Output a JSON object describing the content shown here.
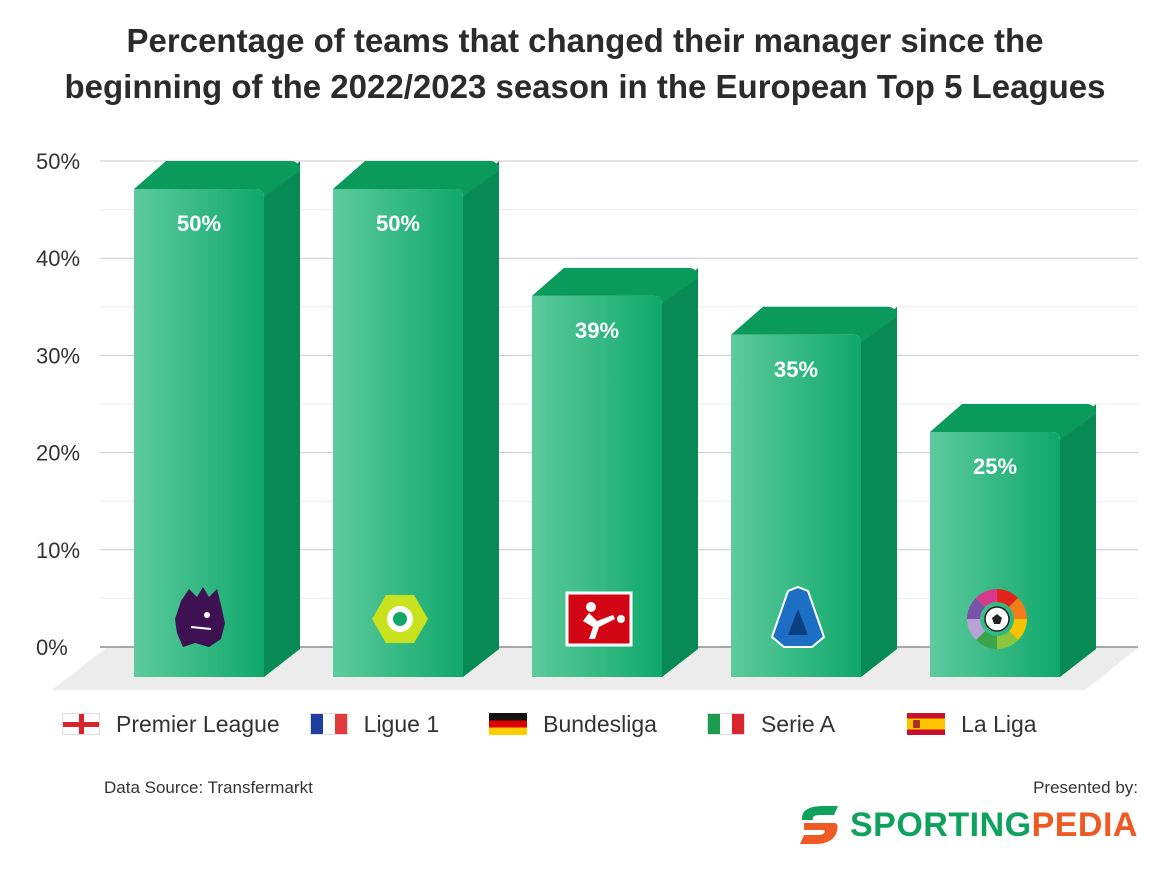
{
  "chart_data": {
    "type": "bar",
    "title_lines": [
      "Percentage of teams that changed their manager since the",
      "beginning of the 2022/2023 season in the European Top 5 Leagues"
    ],
    "categories": [
      "Premier League",
      "Ligue 1",
      "Bundesliga",
      "Serie A",
      "La Liga"
    ],
    "values": [
      50,
      50,
      39,
      35,
      25
    ],
    "value_labels": [
      "50%",
      "50%",
      "39%",
      "35%",
      "25%"
    ],
    "logos": [
      "premier-league-lion-logo",
      "ligue-1-logo",
      "bundesliga-logo",
      "serie-a-logo",
      "la-liga-logo"
    ],
    "ylim": [
      0,
      50
    ],
    "yticks": [
      0,
      10,
      20,
      30,
      40,
      50
    ],
    "ytick_labels": [
      "0%",
      "10%",
      "20%",
      "30%",
      "40%",
      "50%"
    ],
    "grid": true,
    "legend_position": "bottom",
    "bar_colors": {
      "front_light": "#5dcb9e",
      "front_dark": "#0fa86a",
      "top": "#0a9a5b",
      "side": "#078a53"
    }
  },
  "legend": [
    {
      "label": "Premier League",
      "flag": "england-flag-icon"
    },
    {
      "label": "Ligue 1",
      "flag": "france-flag-icon"
    },
    {
      "label": "Bundesliga",
      "flag": "germany-flag-icon"
    },
    {
      "label": "Serie A",
      "flag": "italy-flag-icon"
    },
    {
      "label": "La Liga",
      "flag": "spain-flag-icon"
    }
  ],
  "footer": {
    "source": "Data Source: Transfermarkt",
    "presented_by": "Presented by:",
    "brand_part1": "SPORTING",
    "brand_part2": "PEDIA",
    "brand_icon": "sportingpedia-s-icon"
  },
  "colors": {
    "brand_green": "#0fa25e",
    "brand_orange": "#ef5a24",
    "title": "#2b2b2b"
  }
}
